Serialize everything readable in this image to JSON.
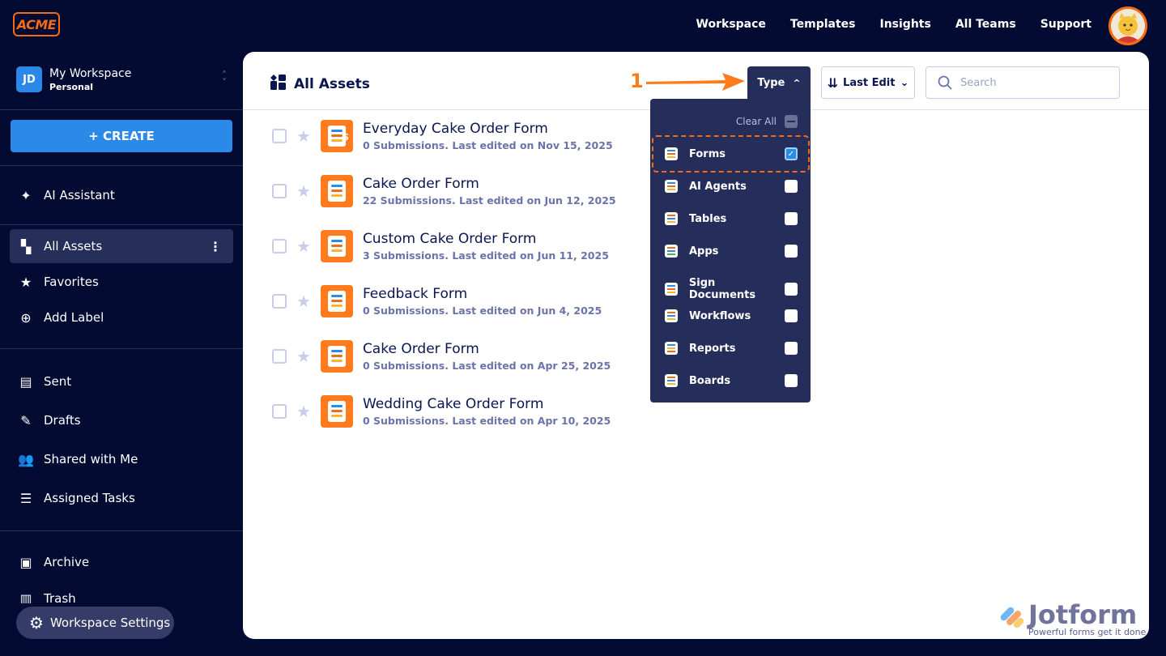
{
  "brand": {
    "logo": "ACME"
  },
  "topnav": [
    "Workspace",
    "Templates",
    "Insights",
    "All Teams",
    "Support"
  ],
  "workspace": {
    "initials": "JD",
    "name": "My Workspace",
    "type": "Personal"
  },
  "sidebar": {
    "create_label": "+ CREATE",
    "ai": "AI Assistant",
    "items": [
      {
        "label": "All Assets",
        "icon": "grid-icon",
        "active": true
      },
      {
        "label": "Favorites",
        "icon": "star-icon"
      },
      {
        "label": "Add Label",
        "icon": "plus-circle-icon"
      },
      {
        "label": "Sent",
        "icon": "message-icon"
      },
      {
        "label": "Drafts",
        "icon": "draft-icon"
      },
      {
        "label": "Shared with Me",
        "icon": "users-icon"
      },
      {
        "label": "Assigned Tasks",
        "icon": "tasks-icon"
      },
      {
        "label": "Archive",
        "icon": "archive-icon"
      },
      {
        "label": "Trash",
        "icon": "trash-icon"
      }
    ],
    "settings": "Workspace Settings"
  },
  "main": {
    "title": "All Assets",
    "type_label": "Type",
    "sort_label": "Last Edit",
    "search_placeholder": "Search",
    "assets": [
      {
        "title": "Everyday Cake Order Form",
        "meta": "0 Submissions. Last edited on Nov 15, 2025",
        "payment": true
      },
      {
        "title": "Cake Order Form",
        "meta": "22 Submissions. Last edited on Jun 12, 2025"
      },
      {
        "title": "Custom Cake Order Form",
        "meta": "3 Submissions. Last edited on Jun 11, 2025"
      },
      {
        "title": "Feedback Form",
        "meta": "0 Submissions. Last edited on Jun 4, 2025"
      },
      {
        "title": "Cake Order Form",
        "meta": "0 Submissions. Last edited on Apr 25, 2025"
      },
      {
        "title": "Wedding Cake Order Form",
        "meta": "0 Submissions. Last edited on Apr 10, 2025"
      }
    ]
  },
  "type_dropdown": {
    "clear_all": "Clear All",
    "options": [
      {
        "label": "Forms",
        "checked": true
      },
      {
        "label": "AI Agents",
        "checked": false
      },
      {
        "label": "Tables",
        "checked": false
      },
      {
        "label": "Apps",
        "checked": false
      },
      {
        "label": "Sign Documents",
        "checked": false
      },
      {
        "label": "Workflows",
        "checked": false
      },
      {
        "label": "Reports",
        "checked": false
      },
      {
        "label": "Boards",
        "checked": false
      }
    ]
  },
  "annotation": {
    "step": "1"
  },
  "watermark": {
    "name": "Jotform",
    "tagline": "Powerful forms get it done"
  },
  "colors": {
    "bg": "#030b33",
    "accent": "#2b8ae8",
    "form_orange": "#ff7b1c",
    "dropdown": "#252d5b",
    "annotation": "#f36a17"
  }
}
